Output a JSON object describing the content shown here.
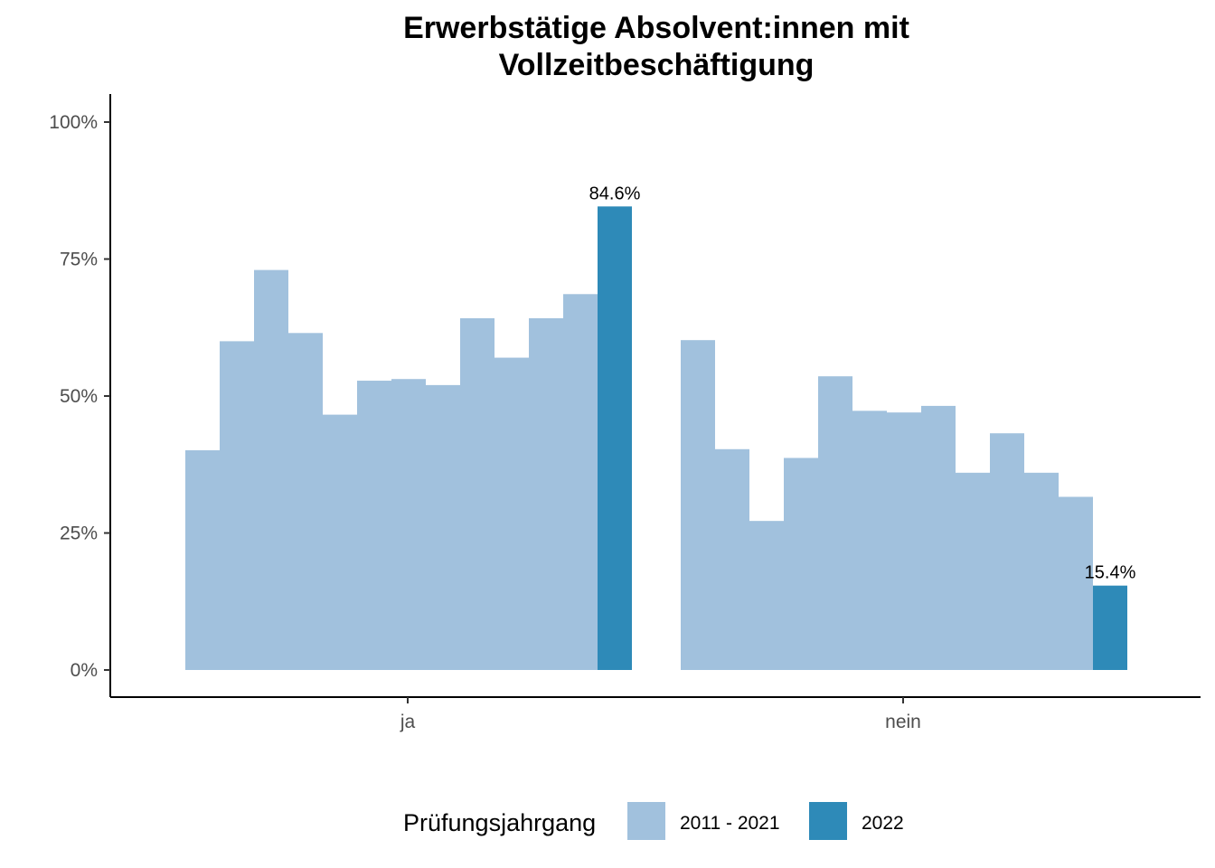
{
  "chart_data": {
    "type": "bar",
    "title_lines": [
      "Erwerbstätige Absolvent:innen mit",
      "Vollzeitbeschäftigung"
    ],
    "xlabel": "",
    "ylabel": "",
    "ylim": [
      0,
      1.05
    ],
    "y_ticks": [
      0,
      0.25,
      0.5,
      0.75,
      1.0
    ],
    "y_tick_labels": [
      "0%",
      "25%",
      "50%",
      "75%",
      "100%"
    ],
    "categories": [
      "ja",
      "nein"
    ],
    "groups": [
      {
        "category": "ja",
        "bars": [
          {
            "value": 0.401,
            "series": "2011 - 2021"
          },
          {
            "value": 0.6,
            "series": "2011 - 2021"
          },
          {
            "value": 0.73,
            "series": "2011 - 2021"
          },
          {
            "value": 0.615,
            "series": "2011 - 2021"
          },
          {
            "value": 0.466,
            "series": "2011 - 2021"
          },
          {
            "value": 0.528,
            "series": "2011 - 2021"
          },
          {
            "value": 0.531,
            "series": "2011 - 2021"
          },
          {
            "value": 0.52,
            "series": "2011 - 2021"
          },
          {
            "value": 0.642,
            "series": "2011 - 2021"
          },
          {
            "value": 0.57,
            "series": "2011 - 2021"
          },
          {
            "value": 0.642,
            "series": "2011 - 2021"
          },
          {
            "value": 0.686,
            "series": "2011 - 2021"
          },
          {
            "value": 0.846,
            "series": "2022",
            "label": "84.6%"
          }
        ]
      },
      {
        "category": "nein",
        "bars": [
          {
            "value": 0.602,
            "series": "2011 - 2021"
          },
          {
            "value": 0.403,
            "series": "2011 - 2021"
          },
          {
            "value": 0.272,
            "series": "2011 - 2021"
          },
          {
            "value": 0.387,
            "series": "2011 - 2021"
          },
          {
            "value": 0.536,
            "series": "2011 - 2021"
          },
          {
            "value": 0.473,
            "series": "2011 - 2021"
          },
          {
            "value": 0.47,
            "series": "2011 - 2021"
          },
          {
            "value": 0.482,
            "series": "2011 - 2021"
          },
          {
            "value": 0.36,
            "series": "2011 - 2021"
          },
          {
            "value": 0.432,
            "series": "2011 - 2021"
          },
          {
            "value": 0.36,
            "series": "2011 - 2021"
          },
          {
            "value": 0.316,
            "series": "2011 - 2021"
          },
          {
            "value": 0.154,
            "series": "2022",
            "label": "15.4%"
          }
        ]
      }
    ],
    "legend": {
      "title": "Prüfungsjahrgang",
      "placement": "bottom",
      "entries": [
        {
          "label": "2011 - 2021",
          "color": "#a1c1dd"
        },
        {
          "label": "2022",
          "color": "#2e8ab8"
        }
      ]
    },
    "colors": {
      "2011 - 2021": "#a1c1dd",
      "2022": "#2e8ab8"
    },
    "grid": false
  }
}
